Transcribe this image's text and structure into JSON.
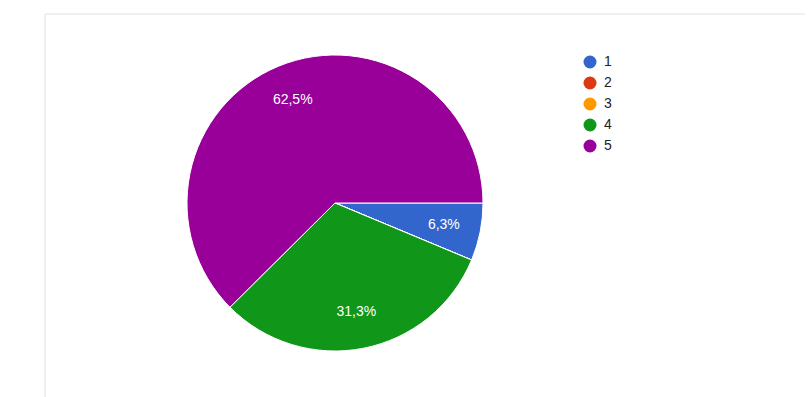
{
  "chart_data": {
    "type": "pie",
    "categories": [
      "1",
      "2",
      "3",
      "4",
      "5"
    ],
    "values": [
      6.3,
      0,
      0,
      31.3,
      62.5
    ],
    "value_labels": [
      "6,3%",
      null,
      null,
      "31,3%",
      "62,5%"
    ],
    "colors": [
      "#3366cc",
      "#dc3912",
      "#ff9900",
      "#109618",
      "#990099"
    ],
    "data_labels": true,
    "legend": "top-right"
  }
}
